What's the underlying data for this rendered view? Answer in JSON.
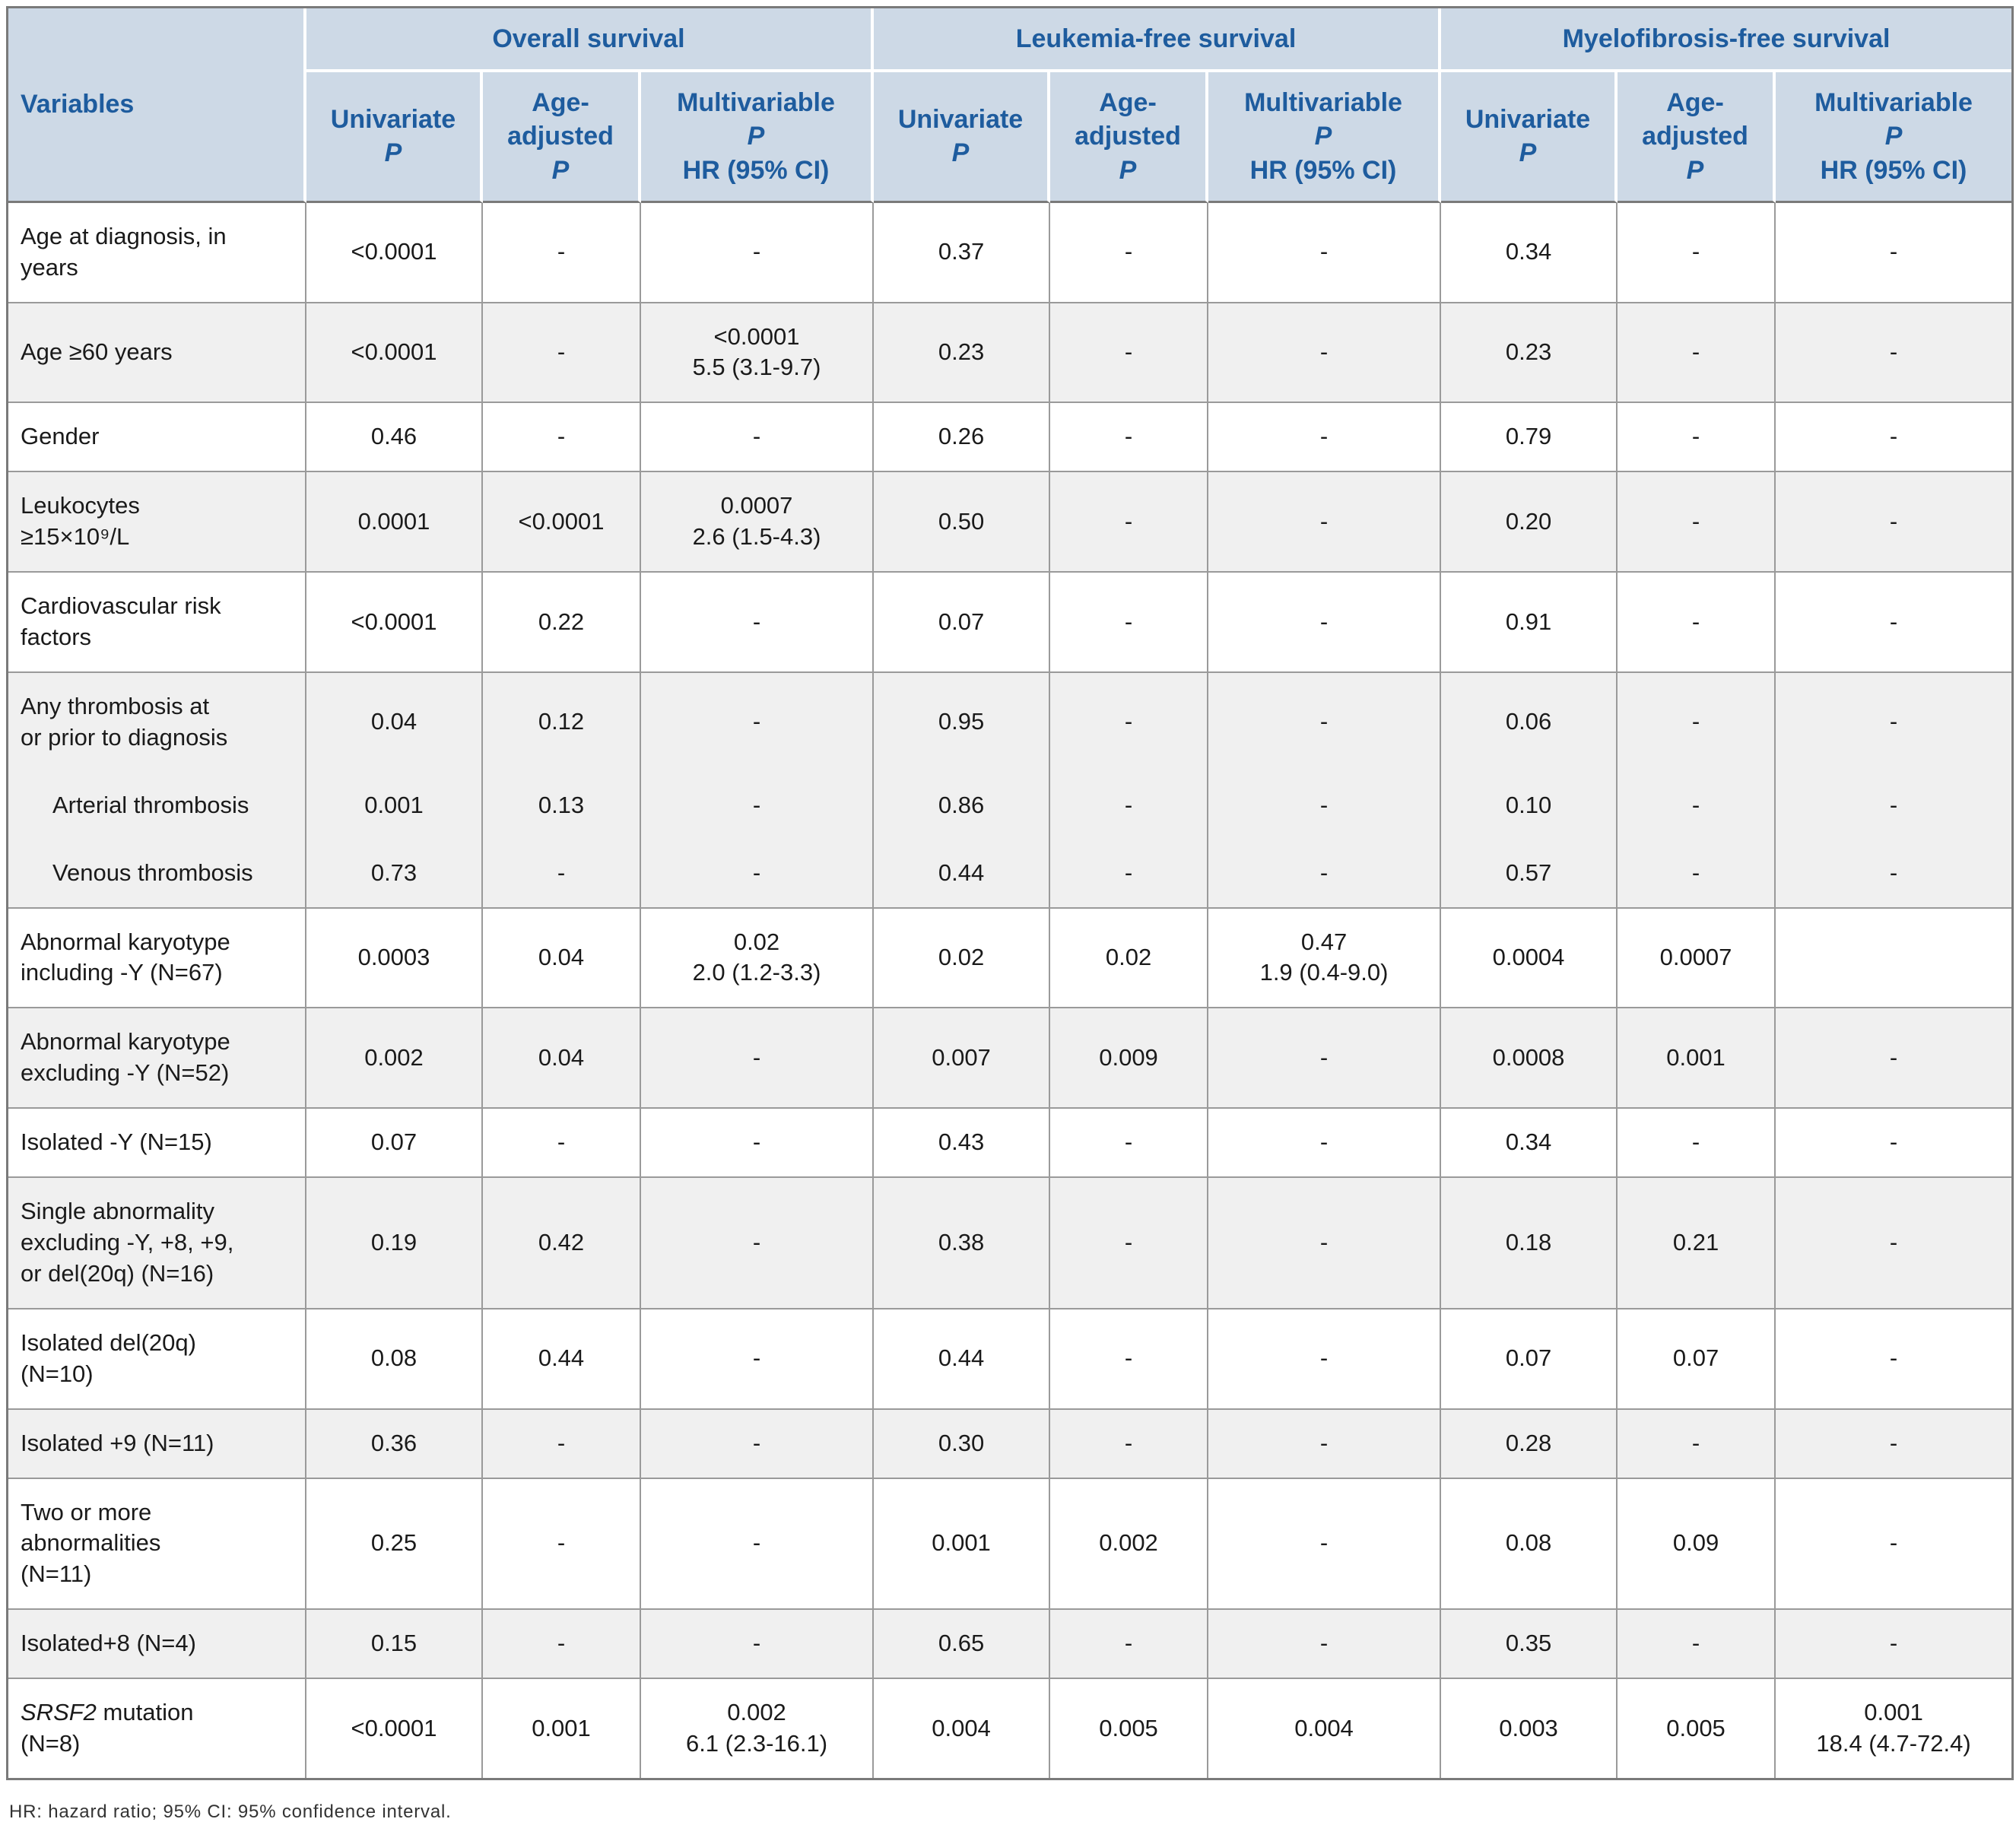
{
  "colors": {
    "header_bg": "#cdd9e6",
    "header_text": "#1e5c9e",
    "row_alt_bg": "#f0f0f0",
    "border_grid": "#9a9a9a",
    "border_outer": "#7a7a7a",
    "body_text": "#1a1a1a"
  },
  "page": {
    "footnote": "HR: hazard ratio; 95% CI: 95% confidence interval."
  },
  "table": {
    "variables_header": "Variables",
    "groups": [
      "Overall survival",
      "Leukemia-free survival",
      "Myelofibrosis-free survival"
    ],
    "subcolumns": [
      {
        "top": "Univariate",
        "p": "P",
        "bottom": ""
      },
      {
        "top": "Age-\nadjusted",
        "p": "P",
        "bottom": ""
      },
      {
        "top": "Multivariable",
        "p": "P",
        "bottom": "HR (95% CI)"
      }
    ],
    "rows": [
      {
        "variable": "Age at diagnosis, in\nyears",
        "shaded": false,
        "cells": [
          "<0.0001",
          "-",
          "-",
          "0.37",
          "-",
          "-",
          "0.34",
          "-",
          "-"
        ]
      },
      {
        "variable": "Age ≥60 years",
        "shaded": true,
        "cells": [
          "<0.0001",
          "-",
          "<0.0001\n5.5 (3.1-9.7)",
          "0.23",
          "-",
          "-",
          "0.23",
          "-",
          "-"
        ]
      },
      {
        "variable": "Gender",
        "shaded": false,
        "cells": [
          "0.46",
          "-",
          "-",
          "0.26",
          "-",
          "-",
          "0.79",
          "-",
          "-"
        ]
      },
      {
        "variable": "Leukocytes\n≥15×10⁹/L",
        "shaded": true,
        "cells": [
          "0.0001",
          "<0.0001",
          "0.0007\n2.6 (1.5-4.3)",
          "0.50",
          "-",
          "-",
          "0.20",
          "-",
          "-"
        ]
      },
      {
        "variable": "Cardiovascular risk\nfactors",
        "shaded": false,
        "cells": [
          "<0.0001",
          "0.22",
          "-",
          "0.07",
          "-",
          "-",
          "0.91",
          "-",
          "-"
        ]
      },
      {
        "variable": "Any thrombosis at\nor prior to diagnosis",
        "shaded": true,
        "merge_bottom": true,
        "cells": [
          "0.04",
          "0.12",
          "-",
          "0.95",
          "-",
          "-",
          "0.06",
          "-",
          "-"
        ]
      },
      {
        "variable": "Arterial thrombosis",
        "shaded": true,
        "indent": true,
        "merge_bottom": true,
        "cells": [
          "0.001",
          "0.13",
          "-",
          "0.86",
          "-",
          "-",
          "0.10",
          "-",
          "-"
        ]
      },
      {
        "variable": "Venous thrombosis",
        "shaded": true,
        "indent": true,
        "cells": [
          "0.73",
          "-",
          "-",
          "0.44",
          "-",
          "-",
          "0.57",
          "-",
          "-"
        ]
      },
      {
        "variable": "Abnormal karyotype\nincluding -Y (N=67)",
        "shaded": false,
        "cells": [
          "0.0003",
          "0.04",
          "0.02\n2.0 (1.2-3.3)",
          "0.02",
          "0.02",
          "0.47\n1.9 (0.4-9.0)",
          "0.0004",
          "0.0007",
          ""
        ]
      },
      {
        "variable": "Abnormal karyotype\nexcluding -Y (N=52)",
        "shaded": true,
        "cells": [
          "0.002",
          "0.04",
          "-",
          "0.007",
          "0.009",
          "-",
          "0.0008",
          "0.001",
          "-"
        ]
      },
      {
        "variable": "Isolated -Y (N=15)",
        "shaded": false,
        "cells": [
          "0.07",
          "-",
          "-",
          "0.43",
          "-",
          "-",
          "0.34",
          "-",
          "-"
        ]
      },
      {
        "variable": "Single abnormality\nexcluding -Y, +8, +9,\nor del(20q) (N=16)",
        "shaded": true,
        "cells": [
          "0.19",
          "0.42",
          "-",
          "0.38",
          "-",
          "-",
          "0.18",
          "0.21",
          "-"
        ]
      },
      {
        "variable": "Isolated del(20q)\n(N=10)",
        "shaded": false,
        "cells": [
          "0.08",
          "0.44",
          "-",
          "0.44",
          "-",
          "-",
          "0.07",
          "0.07",
          "-"
        ]
      },
      {
        "variable": "Isolated +9 (N=11)",
        "shaded": true,
        "cells": [
          "0.36",
          "-",
          "-",
          "0.30",
          "-",
          "-",
          "0.28",
          "-",
          "-"
        ]
      },
      {
        "variable": "Two or more\nabnormalities\n(N=11)",
        "shaded": false,
        "cells": [
          "0.25",
          "-",
          "-",
          "0.001",
          "0.002",
          "-",
          "0.08",
          "0.09",
          "-"
        ]
      },
      {
        "variable": "Isolated+8 (N=4)",
        "shaded": true,
        "cells": [
          "0.15",
          "-",
          "-",
          "0.65",
          "-",
          "-",
          "0.35",
          "-",
          "-"
        ]
      },
      {
        "variable_italic": "SRSF2",
        "variable": " mutation\n(N=8)",
        "shaded": false,
        "cells": [
          "<0.0001",
          "0.001",
          "0.002\n6.1 (2.3-16.1)",
          "0.004",
          "0.005",
          "0.004",
          "0.003",
          "0.005",
          "0.001\n18.4 (4.7-72.4)"
        ]
      }
    ]
  }
}
